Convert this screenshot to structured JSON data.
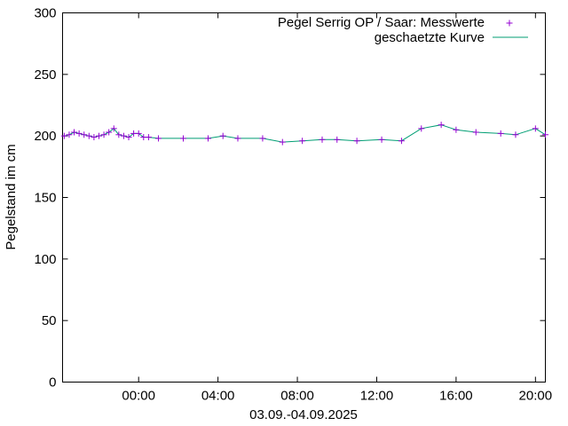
{
  "chart_data": {
    "type": "line",
    "xlabel": "03.09.-04.09.2025",
    "ylabel": "Pegelstand im cm",
    "xlim": [
      "2025-09-03 20:10",
      "2025-09-04 20:30"
    ],
    "ylim": [
      0,
      300
    ],
    "y_ticks": [
      "0",
      "50",
      "100",
      "150",
      "200",
      "250",
      "300"
    ],
    "x_ticks": [
      {
        "t": "2025-09-04 00:00",
        "label": "00:00"
      },
      {
        "t": "2025-09-04 04:00",
        "label": "04:00"
      },
      {
        "t": "2025-09-04 08:00",
        "label": "08:00"
      },
      {
        "t": "2025-09-04 12:00",
        "label": "12:00"
      },
      {
        "t": "2025-09-04 16:00",
        "label": "16:00"
      },
      {
        "t": "2025-09-04 20:00",
        "label": "20:00"
      }
    ],
    "legend_position": "top-right",
    "grid": false,
    "series": [
      {
        "name": "Pegel Serrig OP / Saar: Messwerte",
        "style": "points",
        "marker": "plus",
        "color": "#9400d3",
        "points": [
          [
            "2025-09-03 20:15",
            200
          ],
          [
            "2025-09-03 20:30",
            201
          ],
          [
            "2025-09-03 20:45",
            203
          ],
          [
            "2025-09-03 21:00",
            202
          ],
          [
            "2025-09-03 21:15",
            201
          ],
          [
            "2025-09-03 21:30",
            200
          ],
          [
            "2025-09-03 21:45",
            199
          ],
          [
            "2025-09-03 22:00",
            200
          ],
          [
            "2025-09-03 22:15",
            201
          ],
          [
            "2025-09-03 22:30",
            203
          ],
          [
            "2025-09-03 22:45",
            206
          ],
          [
            "2025-09-03 23:00",
            201
          ],
          [
            "2025-09-03 23:15",
            200
          ],
          [
            "2025-09-03 23:30",
            199
          ],
          [
            "2025-09-03 23:45",
            202
          ],
          [
            "2025-09-04 00:00",
            202
          ],
          [
            "2025-09-04 00:15",
            199
          ],
          [
            "2025-09-04 00:30",
            199
          ],
          [
            "2025-09-04 01:00",
            198
          ],
          [
            "2025-09-04 02:15",
            198
          ],
          [
            "2025-09-04 03:30",
            198
          ],
          [
            "2025-09-04 04:15",
            200
          ],
          [
            "2025-09-04 05:00",
            198
          ],
          [
            "2025-09-04 06:15",
            198
          ],
          [
            "2025-09-04 07:15",
            195
          ],
          [
            "2025-09-04 08:15",
            196
          ],
          [
            "2025-09-04 09:15",
            197
          ],
          [
            "2025-09-04 10:00",
            197
          ],
          [
            "2025-09-04 11:00",
            196
          ],
          [
            "2025-09-04 12:15",
            197
          ],
          [
            "2025-09-04 13:15",
            196
          ],
          [
            "2025-09-04 14:15",
            206
          ],
          [
            "2025-09-04 15:15",
            209
          ],
          [
            "2025-09-04 16:00",
            205
          ],
          [
            "2025-09-04 17:00",
            203
          ],
          [
            "2025-09-04 18:15",
            202
          ],
          [
            "2025-09-04 19:00",
            201
          ],
          [
            "2025-09-04 20:00",
            206
          ],
          [
            "2025-09-04 20:30",
            201
          ]
        ]
      },
      {
        "name": "geschaetzte Kurve",
        "style": "line",
        "color": "#009e73",
        "points": [
          [
            "2025-09-03 20:15",
            200
          ],
          [
            "2025-09-03 20:30",
            201
          ],
          [
            "2025-09-03 20:45",
            203
          ],
          [
            "2025-09-03 21:00",
            202
          ],
          [
            "2025-09-03 21:15",
            201
          ],
          [
            "2025-09-03 21:30",
            200
          ],
          [
            "2025-09-03 21:45",
            199
          ],
          [
            "2025-09-03 22:00",
            200
          ],
          [
            "2025-09-03 22:15",
            201
          ],
          [
            "2025-09-03 22:30",
            203
          ],
          [
            "2025-09-03 22:45",
            206
          ],
          [
            "2025-09-03 23:00",
            201
          ],
          [
            "2025-09-03 23:15",
            200
          ],
          [
            "2025-09-03 23:30",
            199
          ],
          [
            "2025-09-03 23:45",
            202
          ],
          [
            "2025-09-04 00:00",
            202
          ],
          [
            "2025-09-04 00:15",
            199
          ],
          [
            "2025-09-04 00:30",
            199
          ],
          [
            "2025-09-04 01:00",
            198
          ],
          [
            "2025-09-04 02:15",
            198
          ],
          [
            "2025-09-04 03:30",
            198
          ],
          [
            "2025-09-04 04:15",
            200
          ],
          [
            "2025-09-04 05:00",
            198
          ],
          [
            "2025-09-04 06:15",
            198
          ],
          [
            "2025-09-04 07:15",
            195
          ],
          [
            "2025-09-04 08:15",
            196
          ],
          [
            "2025-09-04 09:15",
            197
          ],
          [
            "2025-09-04 10:00",
            197
          ],
          [
            "2025-09-04 11:00",
            196
          ],
          [
            "2025-09-04 12:15",
            197
          ],
          [
            "2025-09-04 13:15",
            196
          ],
          [
            "2025-09-04 14:15",
            206
          ],
          [
            "2025-09-04 15:15",
            209
          ],
          [
            "2025-09-04 16:00",
            205
          ],
          [
            "2025-09-04 17:00",
            203
          ],
          [
            "2025-09-04 18:15",
            202
          ],
          [
            "2025-09-04 19:00",
            201
          ],
          [
            "2025-09-04 20:00",
            206
          ],
          [
            "2025-09-04 20:30",
            201
          ]
        ]
      }
    ]
  }
}
